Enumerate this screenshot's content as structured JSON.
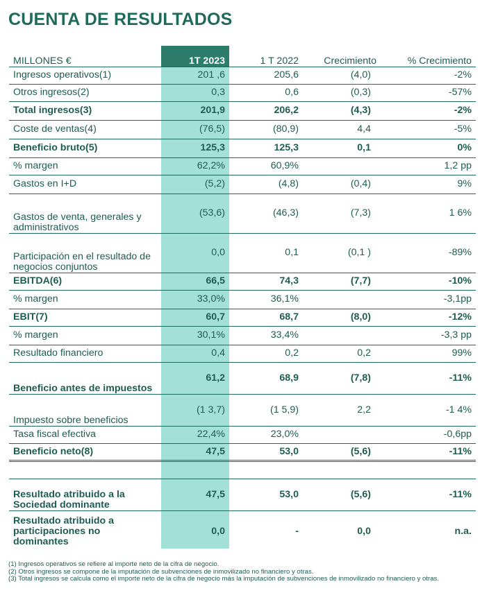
{
  "title": "CUENTA DE RESULTADOS",
  "header": {
    "label": "MILLONES €",
    "col1": "1T 2023",
    "col2": "1 T 2022",
    "col3": "Crecimiento",
    "col4": "% Crecimiento"
  },
  "rows": [
    {
      "label": "Ingresos operativos(1)",
      "v1": "201 ,6",
      "v2": "205,6",
      "v3": "(4,0)",
      "v4": "-2%"
    },
    {
      "label": "Otros ingresos(2)",
      "v1": "0,3",
      "v2": "0,6",
      "v3": "(0,3)",
      "v4": "-57%"
    },
    {
      "label": "Total ingresos(3)",
      "v1": "201,9",
      "v2": "206,2",
      "v3": "(4,3)",
      "v4": "-2%"
    },
    {
      "label": "Coste de ventas(4)",
      "v1": "(76,5)",
      "v2": "(80,9)",
      "v3": "4,4",
      "v4": "-5%"
    },
    {
      "label": "Beneficio bruto(5)",
      "v1": "125,3",
      "v2": "125,3",
      "v3": "0,1",
      "v4": "0%"
    },
    {
      "label": "% margen",
      "v1": "62,2%",
      "v2": "60,9%",
      "v3": "",
      "v4": "1,2 pp"
    },
    {
      "label": "Gastos en I+D",
      "v1": "(5,2)",
      "v2": "(4,8)",
      "v3": "(0,4)",
      "v4": "9%"
    },
    {
      "label": "Gastos de venta, generales y administrativos",
      "v1": "(53,6)",
      "v2": "(46,3)",
      "v3": "(7,3)",
      "v4": "1 6%"
    },
    {
      "label": "Participación en el resultado de negocios conjuntos",
      "v1": "0,0",
      "v2": "0,1",
      "v3": "(0,1 )",
      "v4": "-89%"
    },
    {
      "label": "EBITDA(6)",
      "v1": "66,5",
      "v2": "74,3",
      "v3": "(7,7)",
      "v4": "-10%"
    },
    {
      "label": "% margen",
      "v1": "33,0%",
      "v2": "36,1%",
      "v3": "",
      "v4": "-3,1pp"
    },
    {
      "label": "EBIT(7)",
      "v1": "60,7",
      "v2": "68,7",
      "v3": "(8,0)",
      "v4": "-12%"
    },
    {
      "label": "% margen",
      "v1": "30,1%",
      "v2": "33,4%",
      "v3": "",
      "v4": "-3,3 pp"
    },
    {
      "label": "Resultado financiero",
      "v1": "0,4",
      "v2": "0,2",
      "v3": "0,2",
      "v4": "99%"
    },
    {
      "label": "Beneficio antes de impuestos",
      "v1": "61,2",
      "v2": "68,9",
      "v3": "(7,8)",
      "v4": "-11%"
    },
    {
      "label": "Impuesto sobre beneficios",
      "v1": "(1 3,7)",
      "v2": "(1 5,9)",
      "v3": "2,2",
      "v4": "-1 4%"
    },
    {
      "label": "Tasa fiscal efectiva",
      "v1": "22,4%",
      "v2": "23,0%",
      "v3": "",
      "v4": "-0,6pp"
    },
    {
      "label": "Beneficio neto(8)",
      "v1": "47,5",
      "v2": "53,0",
      "v3": "(5,6)",
      "v4": "-11%"
    },
    {
      "label": "Resultado atribuido a la Sociedad dominante",
      "v1": "47,5",
      "v2": "53,0",
      "v3": "(5,6)",
      "v4": "-11%"
    },
    {
      "label": "Resultado atribuido a participaciones no dominantes",
      "v1": "0,0",
      "v2": "-",
      "v3": "0,0",
      "v4": "n.a."
    }
  ],
  "notes": [
    "(1) Ingresos operativos se refiere al importe neto de la cifra de negocio.",
    "(2) Otros ingresos se compone de la imputación de subvenciones de inmovilizado no financiero y otras.",
    "(3) Total ingresos se calcula como el importe neto de la cifra de negocio más la imputación de subvenciones de inmovilizado no financiero y otras."
  ],
  "colors": {
    "primary": "#1f6b5b",
    "header_highlight": "#2e7d6b",
    "column_highlight": "#a3e1d6"
  }
}
